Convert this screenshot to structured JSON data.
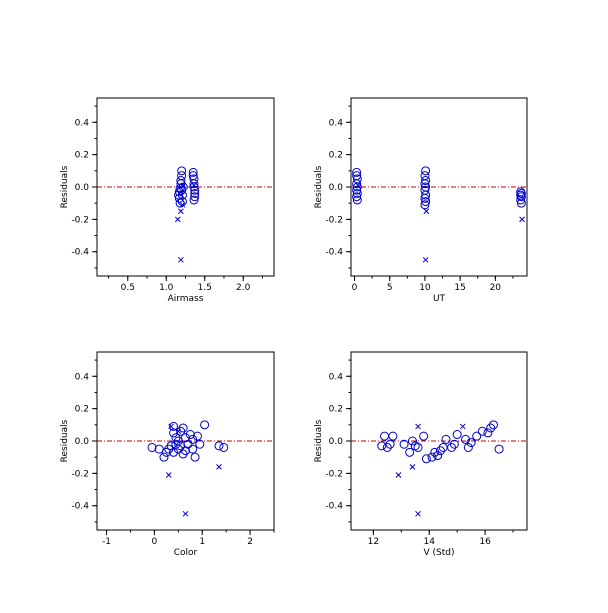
{
  "colors": {
    "marker": "#0000cc",
    "zero_line": "#cc0000",
    "axis": "#000000"
  },
  "chart_data": [
    {
      "type": "scatter",
      "xlabel": "Airmass",
      "ylabel": "Residuals",
      "xlim": [
        0.1,
        2.4
      ],
      "ylim": [
        -0.55,
        0.55
      ],
      "xticks": [
        0.5,
        1.0,
        1.5,
        2.0
      ],
      "xtick_labels": [
        "0.5",
        "1.0",
        "1.5",
        "2.0"
      ],
      "yticks": [
        -0.4,
        -0.2,
        0.0,
        0.2,
        0.4
      ],
      "ytick_labels": [
        "-0.4",
        "-0.2",
        "0.0",
        "0.2",
        "0.4"
      ],
      "zero_line": 0.0,
      "series": [
        {
          "marker": "circle",
          "points": [
            [
              1.16,
              -0.05
            ],
            [
              1.17,
              -0.07
            ],
            [
              1.17,
              -0.03
            ],
            [
              1.18,
              -0.01
            ],
            [
              1.19,
              0.02
            ],
            [
              1.19,
              0.04
            ],
            [
              1.2,
              0.1
            ],
            [
              1.2,
              0.07
            ],
            [
              1.2,
              -0.02
            ],
            [
              1.21,
              -0.05
            ],
            [
              1.21,
              -0.09
            ],
            [
              1.22,
              0.0
            ],
            [
              1.18,
              -0.1
            ],
            [
              1.35,
              0.09
            ],
            [
              1.35,
              0.07
            ],
            [
              1.36,
              0.05
            ],
            [
              1.36,
              0.02
            ],
            [
              1.36,
              0.0
            ],
            [
              1.37,
              -0.02
            ],
            [
              1.37,
              -0.04
            ],
            [
              1.37,
              -0.06
            ],
            [
              1.36,
              -0.08
            ]
          ]
        },
        {
          "marker": "x",
          "points": [
            [
              1.15,
              -0.2
            ],
            [
              1.19,
              -0.15
            ],
            [
              1.19,
              -0.45
            ],
            [
              1.21,
              -0.11
            ],
            [
              1.22,
              0.01
            ],
            [
              1.36,
              0.01
            ]
          ]
        }
      ]
    },
    {
      "type": "scatter",
      "xlabel": "UT",
      "ylabel": "Residuals",
      "xlim": [
        -0.5,
        24.5
      ],
      "ylim": [
        -0.55,
        0.55
      ],
      "xticks": [
        0,
        5,
        10,
        15,
        20
      ],
      "xtick_labels": [
        "0",
        "5",
        "10",
        "15",
        "20"
      ],
      "yticks": [
        -0.4,
        -0.2,
        0.0,
        0.2,
        0.4
      ],
      "ytick_labels": [
        "-0.4",
        "-0.2",
        "0.0",
        "0.2",
        "0.4"
      ],
      "zero_line": 0.0,
      "series": [
        {
          "marker": "circle",
          "points": [
            [
              0.3,
              0.09
            ],
            [
              0.3,
              0.07
            ],
            [
              0.4,
              0.05
            ],
            [
              0.3,
              0.02
            ],
            [
              0.4,
              0.0
            ],
            [
              0.3,
              -0.02
            ],
            [
              0.4,
              -0.04
            ],
            [
              0.3,
              -0.06
            ],
            [
              0.4,
              -0.08
            ],
            [
              10.1,
              0.1
            ],
            [
              10.0,
              0.07
            ],
            [
              10.1,
              0.04
            ],
            [
              10.0,
              0.02
            ],
            [
              10.1,
              0.0
            ],
            [
              10.0,
              -0.02
            ],
            [
              10.1,
              -0.05
            ],
            [
              10.0,
              -0.07
            ],
            [
              10.1,
              -0.09
            ],
            [
              10.0,
              -0.11
            ],
            [
              23.6,
              -0.03
            ],
            [
              23.7,
              -0.04
            ],
            [
              23.6,
              -0.05
            ],
            [
              23.7,
              -0.06
            ],
            [
              23.6,
              -0.08
            ],
            [
              23.7,
              -0.1
            ]
          ]
        },
        {
          "marker": "x",
          "points": [
            [
              0.5,
              0.01
            ],
            [
              10.2,
              -0.15
            ],
            [
              10.1,
              -0.45
            ],
            [
              23.8,
              -0.2
            ]
          ]
        }
      ]
    },
    {
      "type": "scatter",
      "xlabel": "Color",
      "ylabel": "Residuals",
      "xlim": [
        -1.2,
        2.5
      ],
      "ylim": [
        -0.55,
        0.55
      ],
      "xticks": [
        -1,
        0,
        1,
        2
      ],
      "xtick_labels": [
        "-1",
        "0",
        "1",
        "2"
      ],
      "yticks": [
        -0.4,
        -0.2,
        0.0,
        0.2,
        0.4
      ],
      "ytick_labels": [
        "-0.4",
        "-0.2",
        "0.0",
        "0.2",
        "0.4"
      ],
      "zero_line": 0.0,
      "series": [
        {
          "marker": "circle",
          "points": [
            [
              -0.05,
              -0.04
            ],
            [
              0.1,
              -0.05
            ],
            [
              0.2,
              -0.1
            ],
            [
              0.25,
              -0.07
            ],
            [
              0.3,
              -0.05
            ],
            [
              0.35,
              -0.03
            ],
            [
              0.4,
              0.05
            ],
            [
              0.4,
              -0.07
            ],
            [
              0.45,
              0.02
            ],
            [
              0.45,
              -0.02
            ],
            [
              0.5,
              0.0
            ],
            [
              0.5,
              -0.05
            ],
            [
              0.55,
              0.06
            ],
            [
              0.55,
              -0.03
            ],
            [
              0.6,
              0.08
            ],
            [
              0.6,
              -0.08
            ],
            [
              0.65,
              0.02
            ],
            [
              0.65,
              -0.06
            ],
            [
              0.7,
              -0.02
            ],
            [
              0.75,
              0.04
            ],
            [
              0.8,
              0.01
            ],
            [
              0.8,
              -0.05
            ],
            [
              0.85,
              -0.1
            ],
            [
              0.9,
              0.03
            ],
            [
              0.95,
              -0.02
            ],
            [
              1.05,
              0.1
            ],
            [
              1.35,
              -0.03
            ],
            [
              1.45,
              -0.04
            ],
            [
              0.4,
              0.09
            ]
          ]
        },
        {
          "marker": "x",
          "points": [
            [
              0.3,
              -0.21
            ],
            [
              0.35,
              0.09
            ],
            [
              0.65,
              -0.45
            ],
            [
              1.35,
              -0.16
            ],
            [
              0.5,
              0.06
            ]
          ]
        }
      ]
    },
    {
      "type": "scatter",
      "xlabel": "V (Std)",
      "ylabel": "Residuals",
      "xlim": [
        11.2,
        17.5
      ],
      "ylim": [
        -0.55,
        0.55
      ],
      "xticks": [
        12,
        14,
        16
      ],
      "xtick_labels": [
        "12",
        "14",
        "16"
      ],
      "yticks": [
        -0.4,
        -0.2,
        0.0,
        0.2,
        0.4
      ],
      "ytick_labels": [
        "-0.4",
        "-0.2",
        "0.0",
        "0.2",
        "0.4"
      ],
      "zero_line": 0.0,
      "series": [
        {
          "marker": "circle",
          "points": [
            [
              12.3,
              -0.03
            ],
            [
              12.4,
              0.03
            ],
            [
              12.5,
              -0.04
            ],
            [
              12.6,
              -0.02
            ],
            [
              12.7,
              0.03
            ],
            [
              13.1,
              -0.02
            ],
            [
              13.3,
              -0.07
            ],
            [
              13.5,
              -0.03
            ],
            [
              13.6,
              -0.04
            ],
            [
              13.8,
              0.03
            ],
            [
              13.9,
              -0.11
            ],
            [
              14.1,
              -0.1
            ],
            [
              14.2,
              -0.07
            ],
            [
              14.3,
              -0.09
            ],
            [
              14.4,
              -0.06
            ],
            [
              14.5,
              -0.04
            ],
            [
              14.6,
              0.01
            ],
            [
              14.8,
              -0.04
            ],
            [
              14.9,
              -0.02
            ],
            [
              15.0,
              0.04
            ],
            [
              15.3,
              0.01
            ],
            [
              15.4,
              -0.04
            ],
            [
              15.5,
              -0.01
            ],
            [
              15.7,
              0.03
            ],
            [
              15.9,
              0.06
            ],
            [
              16.1,
              0.05
            ],
            [
              16.2,
              0.08
            ],
            [
              16.3,
              0.1
            ],
            [
              16.5,
              -0.05
            ],
            [
              13.4,
              0.0
            ]
          ]
        },
        {
          "marker": "x",
          "points": [
            [
              12.9,
              -0.21
            ],
            [
              13.4,
              -0.16
            ],
            [
              13.6,
              0.09
            ],
            [
              13.6,
              -0.45
            ],
            [
              15.2,
              0.09
            ]
          ]
        }
      ]
    }
  ]
}
